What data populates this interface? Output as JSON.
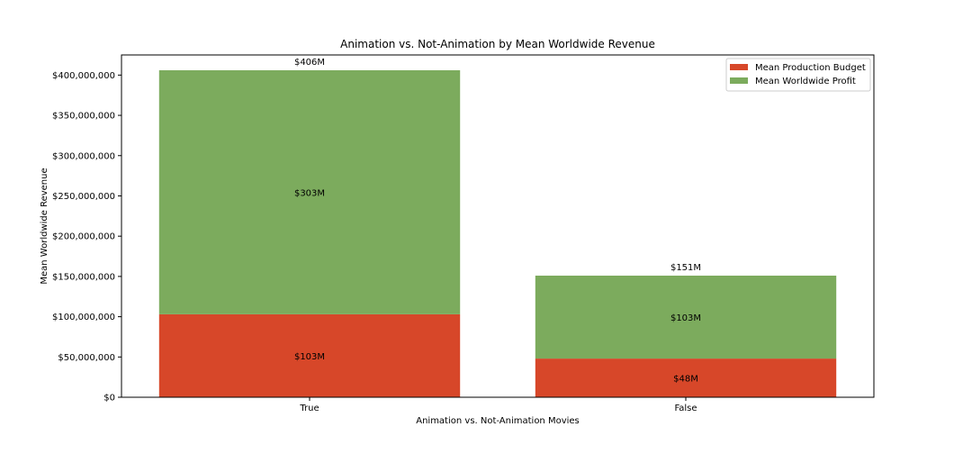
{
  "chart_data": {
    "type": "bar",
    "stacked": true,
    "title": "Animation vs. Not-Animation by Mean Worldwide Revenue",
    "xlabel": "Animation vs. Not-Animation Movies",
    "ylabel": "Mean Worldwide Revenue",
    "categories": [
      "True",
      "False"
    ],
    "series": [
      {
        "name": "Mean Production Budget",
        "color": "#d74729",
        "values": [
          103000000,
          48000000
        ],
        "labels": [
          "$103M",
          "$48M"
        ]
      },
      {
        "name": "Mean Worldwide Profit",
        "color": "#7cab5d",
        "values": [
          303000000,
          103000000
        ],
        "labels": [
          "$303M",
          "$103M"
        ]
      }
    ],
    "totals": [
      406000000,
      151000000
    ],
    "total_labels": [
      "$406M",
      "$151M"
    ],
    "ylim": [
      0,
      425000000
    ],
    "yticks": [
      0,
      50000000,
      100000000,
      150000000,
      200000000,
      250000000,
      300000000,
      350000000,
      400000000
    ],
    "ytick_labels": [
      "$0",
      "$50,000,000",
      "$100,000,000",
      "$150,000,000",
      "$200,000,000",
      "$250,000,000",
      "$300,000,000",
      "$350,000,000",
      "$400,000,000"
    ],
    "legend_position": "top-right",
    "grid": false
  }
}
